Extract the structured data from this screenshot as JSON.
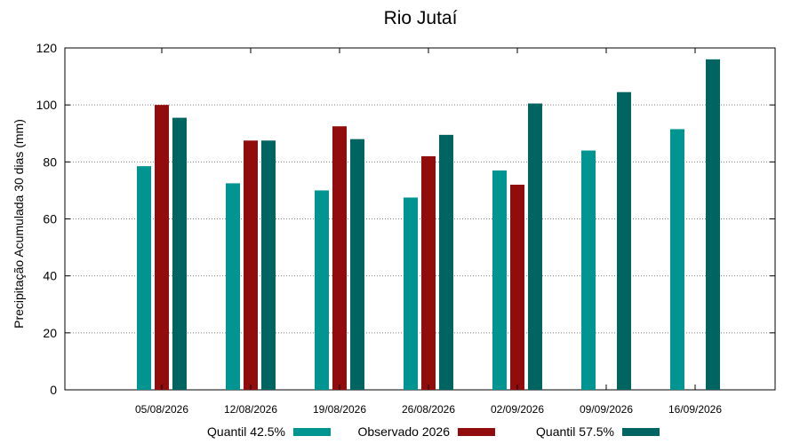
{
  "chart_data": {
    "type": "bar",
    "title": "Rio Jutaí",
    "ylabel": "Precipitação Acumulada 30 dias (mm)",
    "xlabel": "",
    "ylim": [
      0,
      120
    ],
    "yticks": [
      0,
      20,
      40,
      60,
      80,
      100,
      120
    ],
    "grid": "horizontal dotted",
    "legend_position": "bottom",
    "categories": [
      "05/08/2026",
      "12/08/2026",
      "19/08/2026",
      "26/08/2026",
      "02/09/2026",
      "09/09/2026",
      "16/09/2026"
    ],
    "series": [
      {
        "name": "Quantil 42.5%",
        "color": "#009591",
        "values": [
          78.5,
          72.5,
          70,
          67.5,
          77,
          84,
          91.5
        ]
      },
      {
        "name": "Observado 2026",
        "color": "#910c0c",
        "values": [
          100,
          87.5,
          92.5,
          82,
          72,
          null,
          null
        ]
      },
      {
        "name": "Quantil 57.5%",
        "color": "#006460",
        "values": [
          95.5,
          87.5,
          88,
          89.5,
          100.5,
          104.5,
          116
        ]
      }
    ]
  }
}
